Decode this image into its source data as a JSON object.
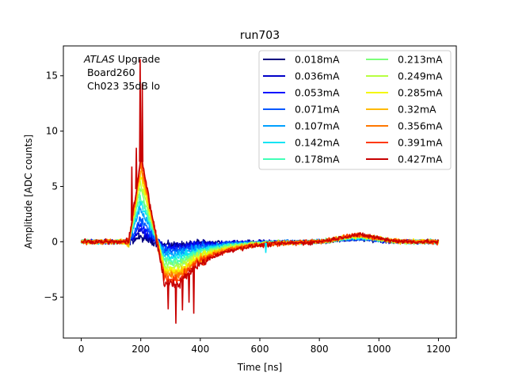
{
  "chart_data": {
    "type": "line",
    "title": "run703",
    "xlabel": "Time [ns]",
    "ylabel": "Amplitude [ADC counts]",
    "xlim": [
      -60,
      1260
    ],
    "ylim": [
      -8.7,
      17.7
    ],
    "xticks": [
      0,
      200,
      400,
      600,
      800,
      1000,
      1200
    ],
    "yticks": [
      -5,
      0,
      5,
      10,
      15
    ],
    "grid": false,
    "legend_position": "top-right",
    "legend_columns": 2,
    "annotation": {
      "italic": "ATLAS",
      "rest": " Upgrade",
      "line2": " Board260",
      "line3": " Ch023 35dB lo"
    },
    "x_range_ns": [
      0,
      1200
    ],
    "series": [
      {
        "name": "0.018mA",
        "color": "#00007f",
        "peak": 0.4,
        "peak_ns": 195,
        "undershoot": -0.3
      },
      {
        "name": "0.036mA",
        "color": "#0000c8",
        "peak": 1.0,
        "peak_ns": 195,
        "undershoot": -0.4
      },
      {
        "name": "0.053mA",
        "color": "#0010ff",
        "peak": 1.5,
        "peak_ns": 196,
        "undershoot": -0.6
      },
      {
        "name": "0.071mA",
        "color": "#0058ff",
        "peak": 2.0,
        "peak_ns": 197,
        "undershoot": -0.8
      },
      {
        "name": "0.107mA",
        "color": "#00a0ff",
        "peak": 3.0,
        "peak_ns": 197,
        "undershoot": -1.1
      },
      {
        "name": "0.142mA",
        "color": "#0ce4f4",
        "peak": 3.6,
        "peak_ns": 198,
        "undershoot": -1.4
      },
      {
        "name": "0.178mA",
        "color": "#40ffb7",
        "peak": 4.2,
        "peak_ns": 198,
        "undershoot": -1.7
      },
      {
        "name": "0.213mA",
        "color": "#7cff7a",
        "peak": 4.8,
        "peak_ns": 199,
        "undershoot": -2.0
      },
      {
        "name": "0.249mA",
        "color": "#b7ff40",
        "peak": 5.4,
        "peak_ns": 199,
        "undershoot": -2.3
      },
      {
        "name": "0.285mA",
        "color": "#f4f802",
        "peak": 6.0,
        "peak_ns": 200,
        "undershoot": -2.6
      },
      {
        "name": "0.32mA",
        "color": "#ffb900",
        "peak": 6.5,
        "peak_ns": 200,
        "undershoot": -2.9
      },
      {
        "name": "0.356mA",
        "color": "#ff7700",
        "peak": 7.0,
        "peak_ns": 200,
        "undershoot": -3.1
      },
      {
        "name": "0.391mA",
        "color": "#ff3800",
        "peak": 7.4,
        "peak_ns": 201,
        "undershoot": -3.4
      },
      {
        "name": "0.427mA",
        "color": "#c80000",
        "peak": 7.8,
        "peak_ns": 201,
        "undershoot": -3.8
      }
    ],
    "spikes": [
      {
        "series": "0.427mA",
        "x": 170,
        "y": 6.8
      },
      {
        "series": "0.427mA",
        "x": 198,
        "y": 16.5
      },
      {
        "series": "0.427mA",
        "x": 205,
        "y": 14.3
      },
      {
        "series": "0.427mA",
        "x": 185,
        "y": 8.5
      },
      {
        "series": "0.427mA",
        "x": 292,
        "y": -6.1
      },
      {
        "series": "0.427mA",
        "x": 318,
        "y": -7.4
      },
      {
        "series": "0.427mA",
        "x": 340,
        "y": -6.2
      },
      {
        "series": "0.427mA",
        "x": 362,
        "y": -5.5
      },
      {
        "series": "0.427mA",
        "x": 378,
        "y": -6.5
      },
      {
        "series": "0.107mA",
        "x": 290,
        "y": -1.2
      },
      {
        "series": "0.142mA",
        "x": 620,
        "y": -1.0
      }
    ]
  }
}
